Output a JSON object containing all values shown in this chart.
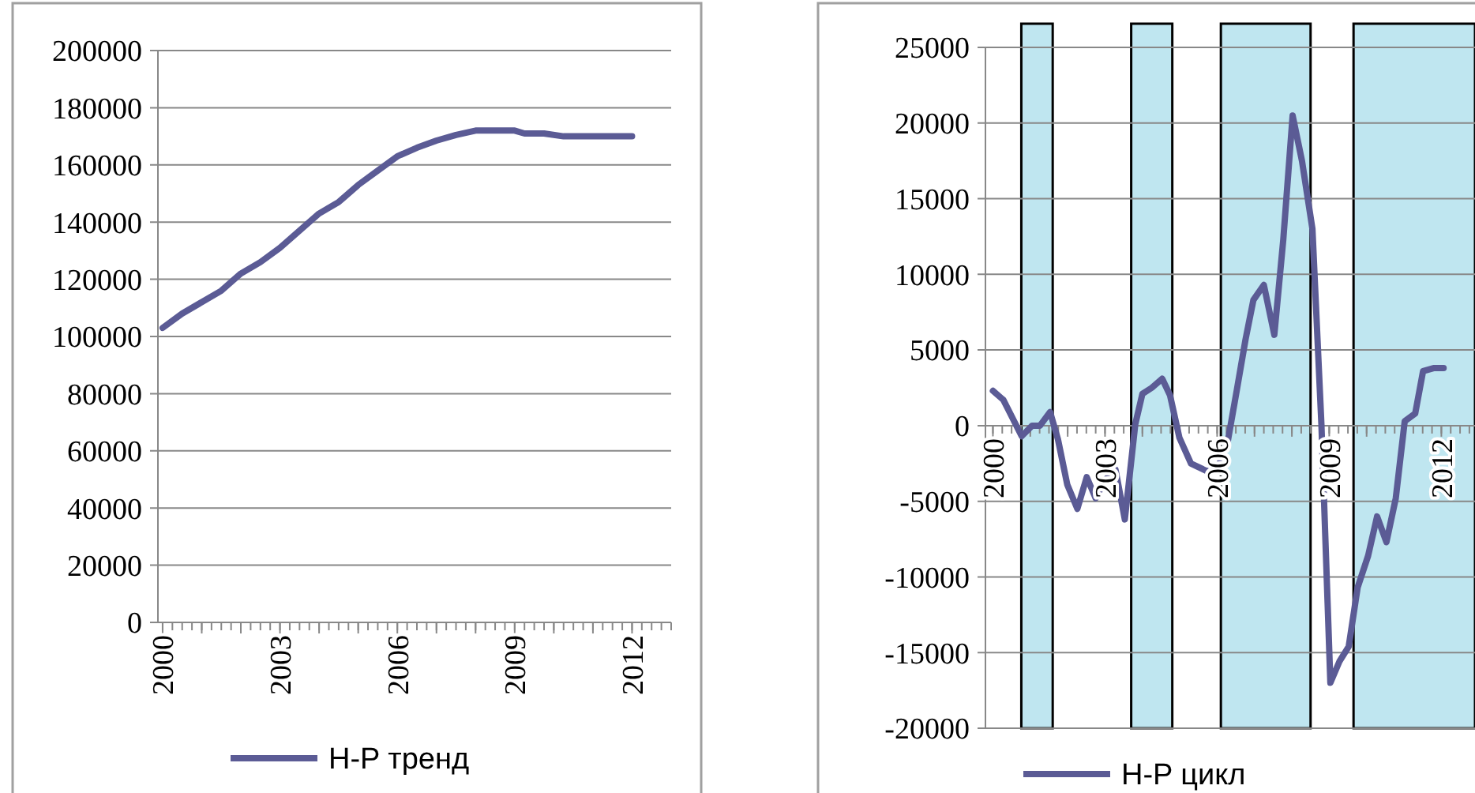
{
  "chart_data": [
    {
      "type": "line",
      "xlim": [
        1999.88,
        2013
      ],
      "ylim": [
        0,
        200000
      ],
      "yticks": [
        0,
        20000,
        40000,
        60000,
        80000,
        100000,
        120000,
        140000,
        160000,
        180000,
        200000
      ],
      "xticks": [
        2000,
        {
          "value": 2001,
          "label": null
        },
        {
          "value": 2002,
          "label": null
        },
        2003,
        {
          "value": 2004,
          "label": null
        },
        {
          "value": 2005,
          "label": null
        },
        2006,
        {
          "value": 2007,
          "label": null
        },
        {
          "value": 2008,
          "label": null
        },
        2009,
        {
          "value": 2010,
          "label": null
        },
        {
          "value": 2011,
          "label": null
        },
        2012
      ],
      "grid": "y",
      "legend": "bottom",
      "marker": "none",
      "line_style": "solid",
      "series": [
        {
          "name": "H-P тренд",
          "color": "#5b5b95",
          "x": [
            2000,
            2000.5,
            2001,
            2001.5,
            2002,
            2002.5,
            2003,
            2003.5,
            2004,
            2004.5,
            2005,
            2005.5,
            2006,
            2006.5,
            2007,
            2007.5,
            2008,
            2008.5,
            2009,
            2009.25,
            2009.75,
            2010.25,
            2011,
            2011.5,
            2012
          ],
          "values": [
            103000,
            108000,
            112000,
            116000,
            122000,
            126000,
            131000,
            137000,
            143000,
            147000,
            153000,
            158000,
            163000,
            166000,
            168500,
            170500,
            172000,
            172000,
            172000,
            171000,
            171000,
            170000,
            170000,
            170000,
            170000
          ]
        }
      ]
    },
    {
      "type": "line",
      "xlim": [
        1999.8,
        2012.9
      ],
      "ylim": [
        -20000,
        25000
      ],
      "yticks": [
        -20000,
        -15000,
        -10000,
        -5000,
        0,
        5000,
        10000,
        15000,
        20000,
        25000
      ],
      "xticks": [
        2000,
        {
          "value": 2001,
          "label": null
        },
        {
          "value": 2002,
          "label": null
        },
        2003,
        {
          "value": 2004,
          "label": null
        },
        {
          "value": 2005,
          "label": null
        },
        2006,
        {
          "value": 2007,
          "label": null
        },
        {
          "value": 2008,
          "label": null
        },
        2009,
        {
          "value": 2010,
          "label": null
        },
        {
          "value": 2011,
          "label": null
        },
        2012
      ],
      "grid": "y",
      "legend": "bottom",
      "marker": "none",
      "line_style": "solid",
      "bands": [
        {
          "axis": "x",
          "from": 2000.76,
          "to": 2001.6,
          "color": "#bfe6f0"
        },
        {
          "axis": "x",
          "from": 2003.7,
          "to": 2004.8,
          "color": "#bfe6f0"
        },
        {
          "axis": "x",
          "from": 2006.1,
          "to": 2008.5,
          "color": "#bfe6f0"
        },
        {
          "axis": "x",
          "from": 2009.65,
          "to": 2012.9,
          "color": "#bfe6f0"
        }
      ],
      "series": [
        {
          "name": "H-P цикл",
          "color": "#5b5b95",
          "x": [
            2000,
            2000.28,
            2000.77,
            2001.05,
            2001.26,
            2001.53,
            2001.74,
            2001.99,
            2002.26,
            2002.51,
            2002.75,
            2003,
            2003.28,
            2003.53,
            2003.81,
            2004,
            2004.25,
            2004.53,
            2004.74,
            2004.99,
            2005.3,
            2005.72,
            2006,
            2006.28,
            2006.53,
            2006.76,
            2006.97,
            2007.25,
            2007.53,
            2007.77,
            2008.02,
            2008.27,
            2008.55,
            2008.79,
            2009.03,
            2009.27,
            2009.52,
            2009.76,
            2010.04,
            2010.28,
            2010.53,
            2010.78,
            2011.02,
            2011.3,
            2011.51,
            2011.79,
            2012.06
          ],
          "values": [
            2300,
            1700,
            -700,
            0,
            0,
            900,
            -900,
            -3900,
            -5500,
            -3400,
            -4800,
            -3600,
            -2900,
            -6200,
            100,
            2100,
            2500,
            3100,
            2000,
            -800,
            -2500,
            -3000,
            -2900,
            -1100,
            2400,
            5700,
            8300,
            9300,
            6000,
            12300,
            20500,
            17500,
            13000,
            100,
            -17000,
            -15600,
            -14600,
            -10700,
            -8600,
            -6000,
            -7700,
            -4800,
            300,
            800,
            3600,
            3800,
            3800
          ]
        }
      ]
    }
  ]
}
